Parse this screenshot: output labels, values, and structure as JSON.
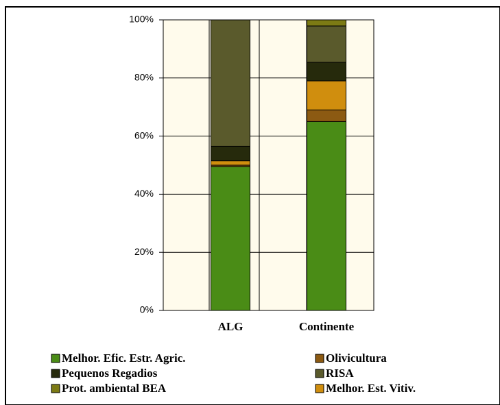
{
  "chart_data": {
    "type": "bar",
    "stacked": true,
    "categories": [
      "ALG",
      "Continente"
    ],
    "series": [
      {
        "name": "Melhor. Efic. Estr. Agric.",
        "color": "#4a8c16",
        "values": [
          49.5,
          65
        ]
      },
      {
        "name": "Olivicultura",
        "color": "#8c5a12",
        "values": [
          0.5,
          4
        ]
      },
      {
        "name": "Melhor. Est. Vitiv.",
        "color": "#d08e0e",
        "values": [
          1.5,
          10
        ]
      },
      {
        "name": "Pequenos Regadios",
        "color": "#262a0c",
        "values": [
          5,
          6.4
        ]
      },
      {
        "name": "RISA",
        "color": "#5a5a2c",
        "values": [
          43.5,
          12.5
        ]
      },
      {
        "name": "Prot. ambiental BEA",
        "color": "#7c7a14",
        "values": [
          0,
          2.1
        ]
      }
    ],
    "ylim": [
      0,
      100
    ],
    "yticks": [
      {
        "value": 0,
        "label": "0%"
      },
      {
        "value": 20,
        "label": "20%"
      },
      {
        "value": 40,
        "label": "40%"
      },
      {
        "value": 60,
        "label": "60%"
      },
      {
        "value": 80,
        "label": "80%"
      },
      {
        "value": 100,
        "label": "100%"
      }
    ],
    "grid": true
  }
}
